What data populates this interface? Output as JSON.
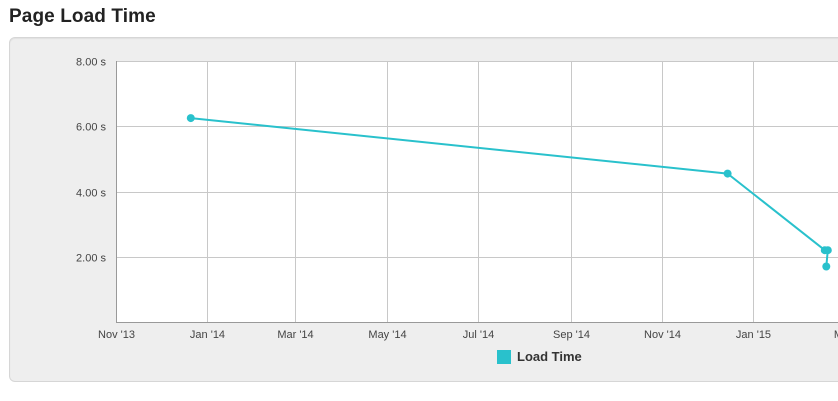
{
  "page": {
    "title": "Page Load Time"
  },
  "chart_data": {
    "type": "line",
    "title": "",
    "xlabel": "",
    "ylabel": "",
    "x_type": "date",
    "xlim": [
      "2013-11-01",
      "2015-03-01"
    ],
    "ylim": [
      0,
      8
    ],
    "y_ticks": [
      {
        "value": 2,
        "label": "2.00 s"
      },
      {
        "value": 4,
        "label": "4.00 s"
      },
      {
        "value": 6,
        "label": "6.00 s"
      },
      {
        "value": 8,
        "label": "8.00 s"
      }
    ],
    "x_ticks": [
      {
        "value": "2013-11-01",
        "label": "Nov '13"
      },
      {
        "value": "2014-01-01",
        "label": "Jan '14"
      },
      {
        "value": "2014-03-01",
        "label": "Mar '14"
      },
      {
        "value": "2014-05-01",
        "label": "May '14"
      },
      {
        "value": "2014-07-01",
        "label": "Jul '14"
      },
      {
        "value": "2014-09-01",
        "label": "Sep '14"
      },
      {
        "value": "2014-11-01",
        "label": "Nov '14"
      },
      {
        "value": "2015-01-01",
        "label": "Jan '15"
      },
      {
        "value": "2015-03-01",
        "label": "Ma"
      }
    ],
    "grid": true,
    "legend_position": "bottom-center",
    "series": [
      {
        "name": "Load Time",
        "color": "#29c1cc",
        "points": [
          {
            "x": "2013-12-21",
            "y": 6.25
          },
          {
            "x": "2014-12-15",
            "y": 4.55
          },
          {
            "x": "2015-02-18",
            "y": 2.2
          },
          {
            "x": "2015-02-20",
            "y": 2.2
          },
          {
            "x": "2015-02-19",
            "y": 1.7
          }
        ]
      }
    ]
  }
}
